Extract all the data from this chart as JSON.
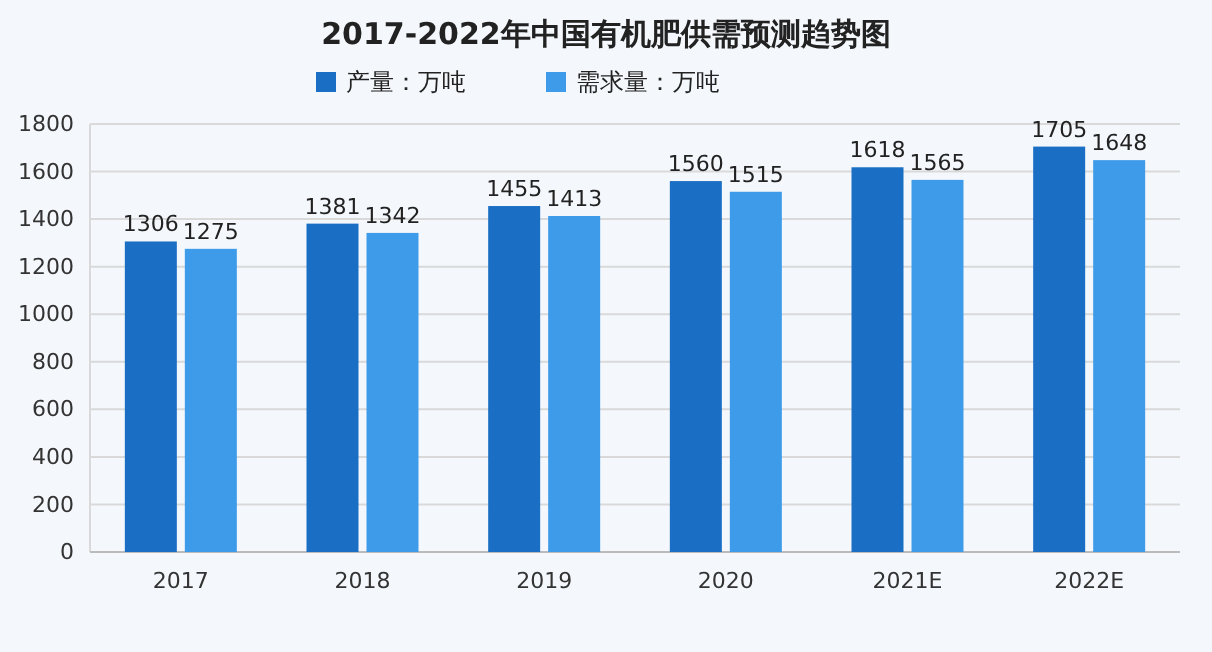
{
  "chart_data": {
    "type": "bar",
    "title": "2017-2022年中国有机肥供需预测趋势图",
    "categories": [
      "2017",
      "2018",
      "2019",
      "2020",
      "2021E",
      "2022E"
    ],
    "series": [
      {
        "name": "产量：万吨",
        "color": "#1a6fc4",
        "values": [
          1306,
          1381,
          1455,
          1560,
          1618,
          1705
        ]
      },
      {
        "name": "需求量：万吨",
        "color": "#3d9be9",
        "values": [
          1275,
          1342,
          1413,
          1515,
          1565,
          1648
        ]
      }
    ],
    "ylim": [
      0,
      1800
    ],
    "yticks": [
      0,
      200,
      400,
      600,
      800,
      1000,
      1200,
      1400,
      1600,
      1800
    ],
    "grid": "y",
    "legend": "top",
    "data_labels": true
  }
}
